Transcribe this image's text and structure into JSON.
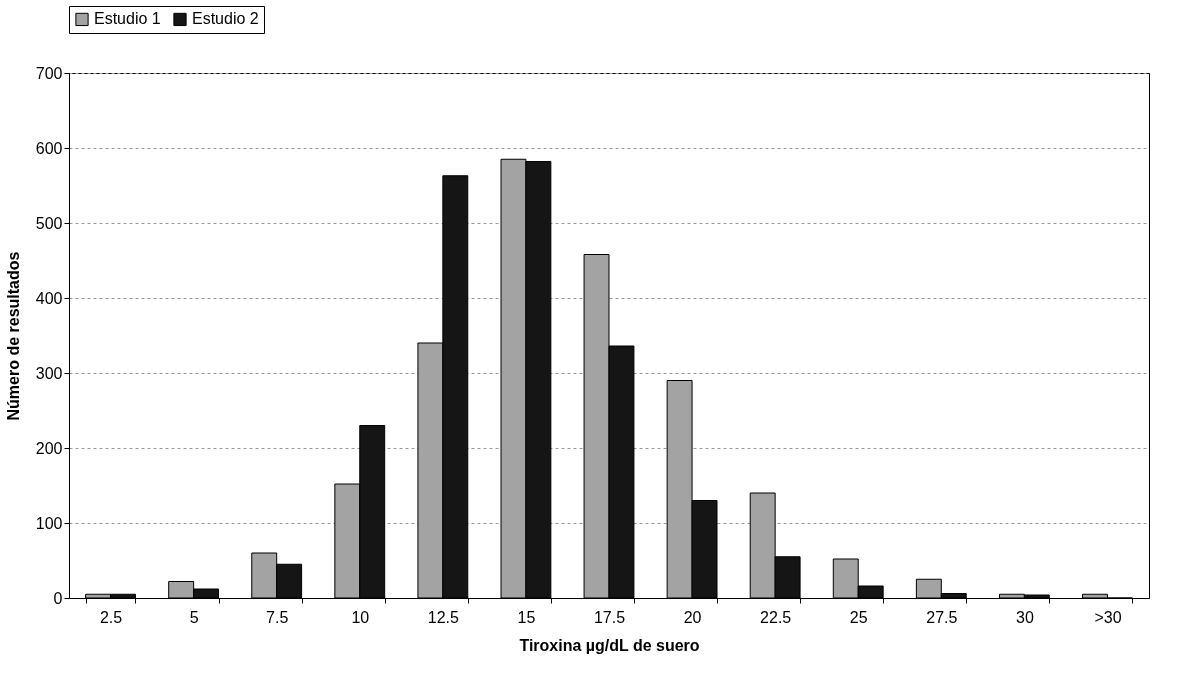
{
  "chart_data": {
    "type": "bar",
    "xlabel": "Tiroxina µg/dL de suero",
    "ylabel": "Número de resultados",
    "categories": [
      "2.5",
      "5",
      "7.5",
      "10",
      "12.5",
      "15",
      "17.5",
      "20",
      "22.5",
      "25",
      "27.5",
      "30",
      ">30"
    ],
    "series": [
      {
        "name": "Estudio 1",
        "color": "#a3a3a3",
        "values": [
          5,
          22,
          60,
          152,
          340,
          585,
          458,
          290,
          140,
          52,
          25,
          5,
          5
        ]
      },
      {
        "name": "Estudio 2",
        "color": "#151515",
        "values": [
          5,
          12,
          45,
          230,
          563,
          582,
          336,
          130,
          55,
          16,
          6,
          4,
          0
        ]
      }
    ],
    "ylim": [
      0,
      700
    ],
    "yticks": [
      0,
      100,
      200,
      300,
      400,
      500,
      600,
      700
    ],
    "grid": "y",
    "legend": "top"
  }
}
